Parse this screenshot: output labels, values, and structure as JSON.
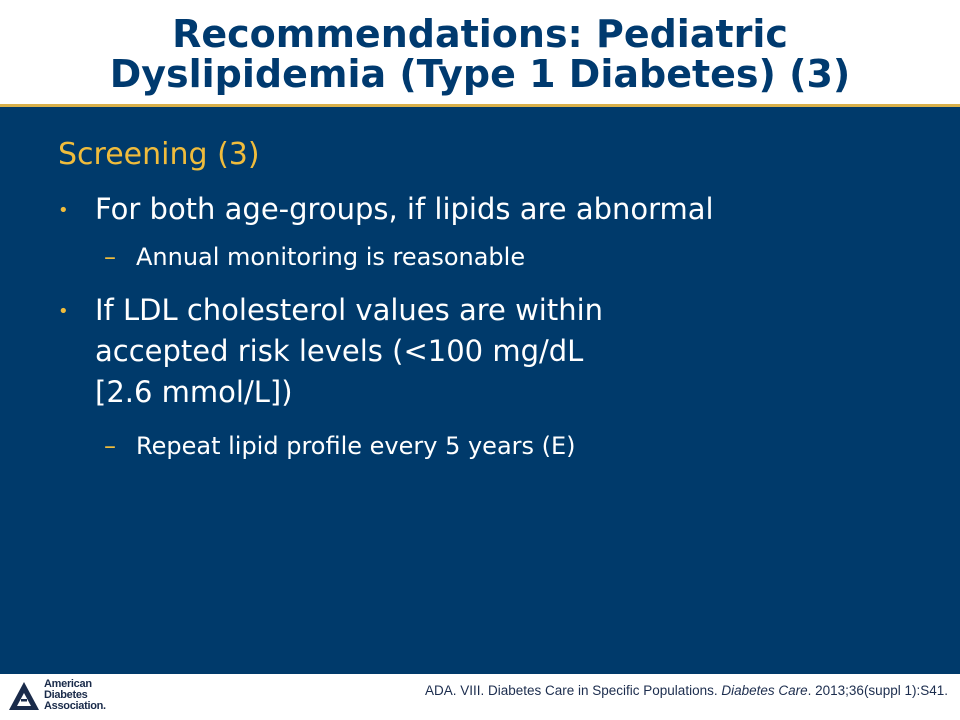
{
  "title": {
    "line1": "Recommendations: Pediatric",
    "line2": "Dyslipidemia (Type 1 Diabetes) (3)"
  },
  "subtitle": "Screening (3)",
  "bullets": [
    {
      "marker": "•",
      "lines": [
        "For both age-groups, if lipids are abnormal"
      ],
      "sub": {
        "marker": "–",
        "text": "Annual monitoring is reasonable"
      }
    },
    {
      "marker": "•",
      "lines": [
        "If LDL cholesterol values are within",
        "accepted risk levels (<100 mg/dL",
        "[2.6 mmol/L])"
      ],
      "sub": {
        "marker": "–",
        "text": "Repeat lipid profile every 5 years (E)"
      }
    }
  ],
  "logo": {
    "icon": "ada-triangle-icon",
    "lines": [
      "American",
      "Diabetes",
      "Association."
    ]
  },
  "citation": {
    "prefix": "ADA. VIII. Diabetes Care in Specific Populations. ",
    "journal": "Diabetes Care",
    "suffix": ". 2013;36(suppl 1):S41."
  },
  "colors": {
    "title": "#003a6f",
    "background": "#003a6b",
    "accent_gold": "#f0bc3c",
    "rule": "#d8b04a",
    "body_text": "#ffffff"
  }
}
